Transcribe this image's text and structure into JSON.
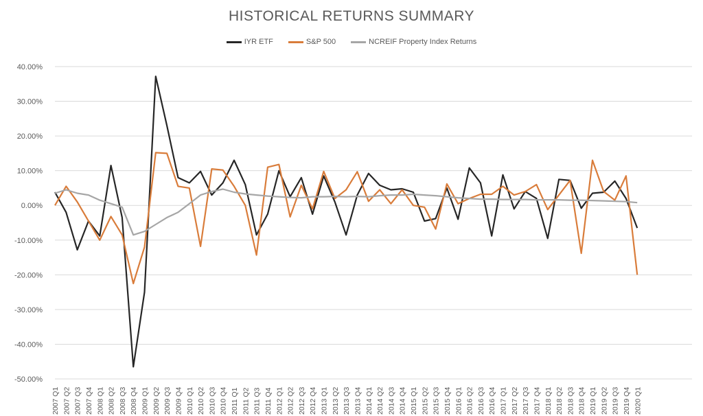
{
  "chart_data": {
    "type": "line",
    "title": "HISTORICAL RETURNS SUMMARY",
    "xlabel": "",
    "ylabel": "",
    "ylim": [
      -0.5,
      0.4
    ],
    "y_ticks": [
      {
        "value": 0.4,
        "label": "40.00%"
      },
      {
        "value": 0.3,
        "label": "30.00%"
      },
      {
        "value": 0.2,
        "label": "20.00%"
      },
      {
        "value": 0.1,
        "label": "10.00%"
      },
      {
        "value": 0.0,
        "label": "0.00%"
      },
      {
        "value": -0.1,
        "label": "-10.00%"
      },
      {
        "value": -0.2,
        "label": "-20.00%"
      },
      {
        "value": -0.3,
        "label": "-30.00%"
      },
      {
        "value": -0.4,
        "label": "-40.00%"
      },
      {
        "value": -0.5,
        "label": "-50.00%"
      }
    ],
    "grid": true,
    "legend_position": "top",
    "categories": [
      "2007 Q1",
      "2007 Q2",
      "2007 Q3",
      "2007 Q4",
      "2008 Q1",
      "2008 Q2",
      "2008 Q3",
      "2008 Q4",
      "2009 Q1",
      "2009 Q2",
      "2009 Q3",
      "2009 Q4",
      "2010 Q1",
      "2010 Q2",
      "2010 Q3",
      "2010 Q4",
      "2011 Q1",
      "2011 Q2",
      "2011 Q3",
      "2011 Q4",
      "2012 Q1",
      "2012 Q2",
      "2012 Q3",
      "2012 Q4",
      "2013 Q1",
      "2013 Q2",
      "2013 Q3",
      "2013 Q4",
      "2014 Q1",
      "2014 Q2",
      "2014 Q3",
      "2014 Q4",
      "2015 Q1",
      "2015 Q2",
      "2015 Q3",
      "2015 Q4",
      "2016 Q1",
      "2016 Q2",
      "2016 Q3",
      "2016 Q4",
      "2017 Q1",
      "2017 Q2",
      "2017 Q3",
      "2017 Q4",
      "2018 Q1",
      "2018 Q2",
      "2018 Q3",
      "2018 Q4",
      "2019 Q1",
      "2019 Q2",
      "2019 Q3",
      "2019 Q4",
      "2020 Q1"
    ],
    "category_positions": [
      0,
      1,
      2,
      3,
      4,
      5,
      6,
      7,
      8,
      9,
      10,
      11,
      12,
      13,
      14,
      15,
      16,
      17,
      18,
      19,
      20,
      21,
      22,
      23,
      24,
      25,
      26,
      27,
      28,
      29,
      30,
      31,
      32,
      33,
      34,
      35,
      36,
      37,
      38,
      39,
      40,
      41,
      42,
      43,
      44,
      45,
      46,
      47,
      48,
      49,
      50,
      51,
      52
    ],
    "series": [
      {
        "name": "IYR ETF",
        "color": "#262626",
        "points": [
          [
            0,
            0.038
          ],
          [
            0.9,
            -0.02
          ],
          [
            1.8,
            -0.128
          ],
          [
            2.7,
            -0.045
          ],
          [
            3.6,
            -0.088
          ],
          [
            4.5,
            0.115
          ],
          [
            5.4,
            -0.035
          ],
          [
            6.3,
            -0.465
          ],
          [
            7.2,
            -0.25
          ],
          [
            8.1,
            0.372
          ],
          [
            9.0,
            0.23
          ],
          [
            9.9,
            0.08
          ],
          [
            10.8,
            0.065
          ],
          [
            11.7,
            0.098
          ],
          [
            12.6,
            0.03
          ],
          [
            13.5,
            0.065
          ],
          [
            14.4,
            0.13
          ],
          [
            15.3,
            0.06
          ],
          [
            16.2,
            -0.085
          ],
          [
            17.1,
            -0.025
          ],
          [
            18.0,
            0.1
          ],
          [
            18.9,
            0.025
          ],
          [
            19.8,
            0.08
          ],
          [
            20.7,
            -0.025
          ],
          [
            21.6,
            0.085
          ],
          [
            22.5,
            0.01
          ],
          [
            23.4,
            -0.085
          ],
          [
            24.3,
            0.03
          ],
          [
            25.2,
            0.092
          ],
          [
            26.1,
            0.058
          ],
          [
            27.0,
            0.045
          ],
          [
            27.9,
            0.048
          ],
          [
            28.8,
            0.038
          ],
          [
            29.7,
            -0.045
          ],
          [
            30.6,
            -0.038
          ],
          [
            31.5,
            0.05
          ],
          [
            32.4,
            -0.04
          ],
          [
            33.3,
            0.108
          ],
          [
            34.2,
            0.065
          ],
          [
            35.1,
            -0.088
          ],
          [
            36.0,
            0.088
          ],
          [
            36.9,
            -0.01
          ],
          [
            37.8,
            0.04
          ],
          [
            38.7,
            0.02
          ],
          [
            39.6,
            -0.095
          ],
          [
            40.5,
            0.075
          ],
          [
            41.4,
            0.072
          ],
          [
            42.3,
            -0.008
          ],
          [
            43.2,
            0.035
          ],
          [
            44.1,
            0.038
          ],
          [
            45.0,
            0.07
          ],
          [
            45.9,
            0.02
          ],
          [
            46.8,
            -0.065
          ]
        ]
      },
      {
        "name": "S&P 500",
        "color": "#d97c3a",
        "points": [
          [
            0,
            0.0
          ],
          [
            0.9,
            0.055
          ],
          [
            1.8,
            0.01
          ],
          [
            2.7,
            -0.045
          ],
          [
            3.6,
            -0.1
          ],
          [
            4.5,
            -0.032
          ],
          [
            5.4,
            -0.085
          ],
          [
            6.3,
            -0.225
          ],
          [
            7.2,
            -0.12
          ],
          [
            8.1,
            0.152
          ],
          [
            9.0,
            0.15
          ],
          [
            9.9,
            0.055
          ],
          [
            10.8,
            0.05
          ],
          [
            11.7,
            -0.118
          ],
          [
            12.6,
            0.105
          ],
          [
            13.5,
            0.102
          ],
          [
            14.4,
            0.055
          ],
          [
            15.3,
            0.0
          ],
          [
            16.2,
            -0.143
          ],
          [
            17.1,
            0.11
          ],
          [
            18.0,
            0.118
          ],
          [
            18.9,
            -0.033
          ],
          [
            19.8,
            0.058
          ],
          [
            20.7,
            -0.01
          ],
          [
            21.6,
            0.098
          ],
          [
            22.5,
            0.02
          ],
          [
            23.4,
            0.045
          ],
          [
            24.3,
            0.097
          ],
          [
            25.2,
            0.012
          ],
          [
            26.1,
            0.045
          ],
          [
            27.0,
            0.005
          ],
          [
            27.9,
            0.045
          ],
          [
            28.8,
            0.0
          ],
          [
            29.7,
            -0.005
          ],
          [
            30.6,
            -0.068
          ],
          [
            31.5,
            0.062
          ],
          [
            32.4,
            0.005
          ],
          [
            33.3,
            0.02
          ],
          [
            34.2,
            0.032
          ],
          [
            35.1,
            0.032
          ],
          [
            36.0,
            0.055
          ],
          [
            36.9,
            0.03
          ],
          [
            37.8,
            0.04
          ],
          [
            38.7,
            0.06
          ],
          [
            39.6,
            -0.012
          ],
          [
            40.5,
            0.03
          ],
          [
            41.4,
            0.072
          ],
          [
            42.3,
            -0.138
          ],
          [
            43.2,
            0.13
          ],
          [
            44.1,
            0.04
          ],
          [
            45.0,
            0.015
          ],
          [
            45.9,
            0.085
          ],
          [
            46.8,
            -0.2
          ]
        ]
      },
      {
        "name": "NCREIF Property Index Returns",
        "color": "#a6a6a6",
        "points": [
          [
            0,
            0.035
          ],
          [
            0.9,
            0.045
          ],
          [
            1.8,
            0.035
          ],
          [
            2.7,
            0.03
          ],
          [
            3.6,
            0.015
          ],
          [
            4.5,
            0.005
          ],
          [
            5.4,
            -0.005
          ],
          [
            6.3,
            -0.085
          ],
          [
            7.2,
            -0.075
          ],
          [
            8.1,
            -0.055
          ],
          [
            9.0,
            -0.035
          ],
          [
            9.9,
            -0.02
          ],
          [
            10.8,
            0.005
          ],
          [
            11.7,
            0.03
          ],
          [
            12.6,
            0.04
          ],
          [
            13.5,
            0.047
          ],
          [
            14.4,
            0.038
          ],
          [
            15.3,
            0.033
          ],
          [
            16.2,
            0.03
          ],
          [
            17.1,
            0.027
          ],
          [
            18.0,
            0.025
          ],
          [
            18.9,
            0.023
          ],
          [
            19.8,
            0.022
          ],
          [
            20.7,
            0.025
          ],
          [
            21.6,
            0.025
          ],
          [
            22.5,
            0.026
          ],
          [
            23.4,
            0.025
          ],
          [
            24.3,
            0.026
          ],
          [
            25.2,
            0.025
          ],
          [
            26.1,
            0.028
          ],
          [
            27.0,
            0.03
          ],
          [
            27.9,
            0.03
          ],
          [
            28.8,
            0.032
          ],
          [
            29.7,
            0.03
          ],
          [
            30.6,
            0.028
          ],
          [
            31.5,
            0.025
          ],
          [
            32.4,
            0.022
          ],
          [
            33.3,
            0.02
          ],
          [
            34.2,
            0.018
          ],
          [
            35.1,
            0.018
          ],
          [
            36.0,
            0.017
          ],
          [
            36.9,
            0.017
          ],
          [
            37.8,
            0.017
          ],
          [
            38.7,
            0.016
          ],
          [
            39.6,
            0.016
          ],
          [
            40.5,
            0.016
          ],
          [
            41.4,
            0.015
          ],
          [
            42.3,
            0.015
          ],
          [
            43.2,
            0.014
          ],
          [
            44.1,
            0.013
          ],
          [
            45.0,
            0.012
          ],
          [
            45.9,
            0.011
          ],
          [
            46.8,
            0.008
          ]
        ]
      }
    ]
  }
}
